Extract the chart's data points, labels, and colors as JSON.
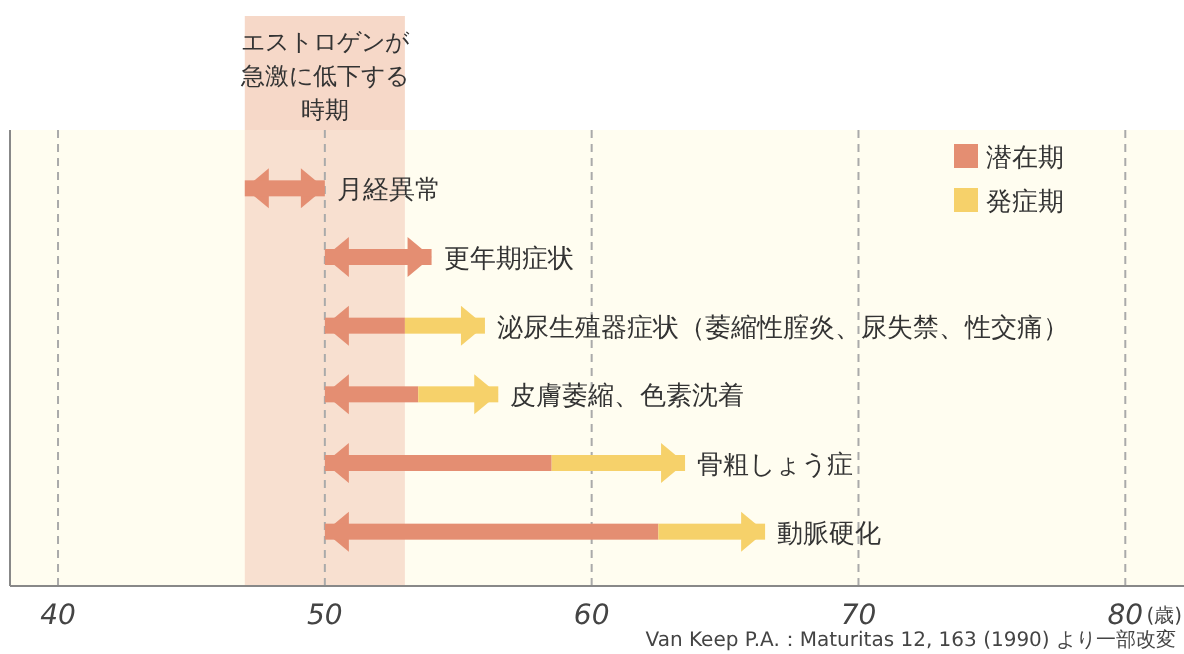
{
  "chart_data": {
    "type": "bar",
    "orientation": "horizontal",
    "categories": [
      "月経異常",
      "更年期症状",
      "泌尿生殖器症状（萎縮性腟炎、尿失禁、性交痛）",
      "皮膚萎縮、色素沈着",
      "骨粗しょう症",
      "動脈硬化"
    ],
    "series": [
      {
        "name": "潜在期",
        "color": "#e48e72",
        "base": [
          47,
          50,
          50,
          50,
          50,
          50
        ],
        "values": [
          3,
          4,
          3,
          3.5,
          8.5,
          12.5
        ]
      },
      {
        "name": "発症期",
        "color": "#f6d16a",
        "base": [
          null,
          null,
          53,
          53.5,
          58.5,
          62.5
        ],
        "values": [
          null,
          null,
          3,
          3,
          5,
          4
        ]
      }
    ],
    "xlim": [
      38.2,
      82.2
    ],
    "xticks": [
      40,
      50,
      60,
      70,
      80
    ],
    "xlabel": "(歳)",
    "grid": "x",
    "legend": "top right",
    "bands": [
      {
        "axis": "x",
        "from": 47,
        "to": 53,
        "label": "エストロゲンが急激に低下する時期",
        "color": "#f6d8c8"
      }
    ],
    "annotations": [
      "Van Keep P.A.：Maturitas 12, 163 (1990) より一部改変"
    ]
  }
}
